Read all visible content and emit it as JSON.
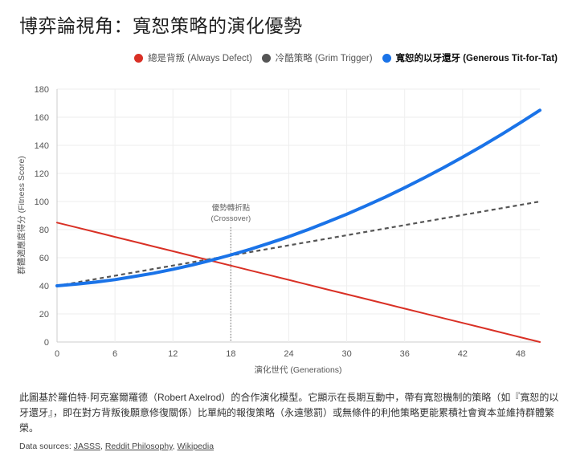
{
  "title": "博弈論視角：寬恕策略的演化優勢",
  "legend": [
    {
      "label": "總是背叛 (Always Defect)",
      "color": "#d93025",
      "bold": false
    },
    {
      "label": "冷酷策略 (Grim Trigger)",
      "color": "#555555",
      "bold": false
    },
    {
      "label": "寬恕的以牙還牙 (Generous Tit-for-Tat)",
      "color": "#1a73e8",
      "bold": true
    }
  ],
  "chart_data": {
    "type": "line",
    "xlabel": "演化世代 (Generations)",
    "ylabel": "群體適應度得分 (Fitness Score)",
    "xlim": [
      0,
      50
    ],
    "ylim": [
      0,
      180
    ],
    "xticks": [
      0,
      6,
      12,
      18,
      24,
      30,
      36,
      42,
      48
    ],
    "yticks": [
      0,
      20,
      40,
      60,
      80,
      100,
      120,
      140,
      160,
      180
    ],
    "grid": true,
    "legend_position": "top-right",
    "x": [
      0,
      2,
      4,
      6,
      8,
      10,
      12,
      14,
      16,
      18,
      20,
      22,
      24,
      26,
      28,
      30,
      32,
      34,
      36,
      38,
      40,
      42,
      44,
      46,
      48,
      50
    ],
    "series": [
      {
        "name": "總是背叛 (Always Defect)",
        "color": "#d93025",
        "style": "solid",
        "values": [
          85,
          81.6,
          78.2,
          74.8,
          71.4,
          68,
          64.6,
          61.2,
          57.8,
          54.4,
          51,
          47.6,
          44.2,
          40.8,
          37.4,
          34,
          30.6,
          27.2,
          23.8,
          20.4,
          17,
          13.6,
          10.2,
          6.8,
          3.4,
          0
        ]
      },
      {
        "name": "冷酷策略 (Grim Trigger)",
        "color": "#555555",
        "style": "dashed",
        "values": [
          40,
          42.4,
          44.8,
          47.2,
          49.6,
          52,
          54.4,
          56.8,
          59.2,
          61.6,
          64,
          66.4,
          68.8,
          71.2,
          73.6,
          76,
          78.4,
          80.8,
          83.2,
          85.6,
          88,
          90.4,
          92.8,
          95.2,
          97.6,
          100
        ]
      },
      {
        "name": "寬恕的以牙還牙 (Generous Tit-for-Tat)",
        "color": "#1a73e8",
        "style": "solid-thick",
        "values": [
          40,
          41.2,
          42.6,
          44.4,
          46.6,
          49,
          51.8,
          54.8,
          58.2,
          62,
          66,
          70.4,
          75,
          80,
          85.4,
          91,
          97,
          103.2,
          109.8,
          116.8,
          124,
          131.6,
          139.4,
          147.6,
          156.2,
          165
        ]
      }
    ],
    "annotations": [
      {
        "x": 18,
        "label_line1": "優勢轉折點",
        "label_line2": "(Crossover)"
      }
    ]
  },
  "description": "此圖基於羅伯特·阿克塞爾羅德（Robert Axelrod）的合作演化模型。它顯示在長期互動中，帶有寬恕機制的策略（如『寬恕的以牙還牙』，即在對方背叛後願意修復關係）比單純的報復策略（永遠懲罰）或無條件的利他策略更能累積社會資本並維持群體繁榮。",
  "sources": {
    "prefix": "Data sources:",
    "links": [
      "JASSS",
      "Reddit Philosophy",
      "Wikipedia"
    ]
  }
}
